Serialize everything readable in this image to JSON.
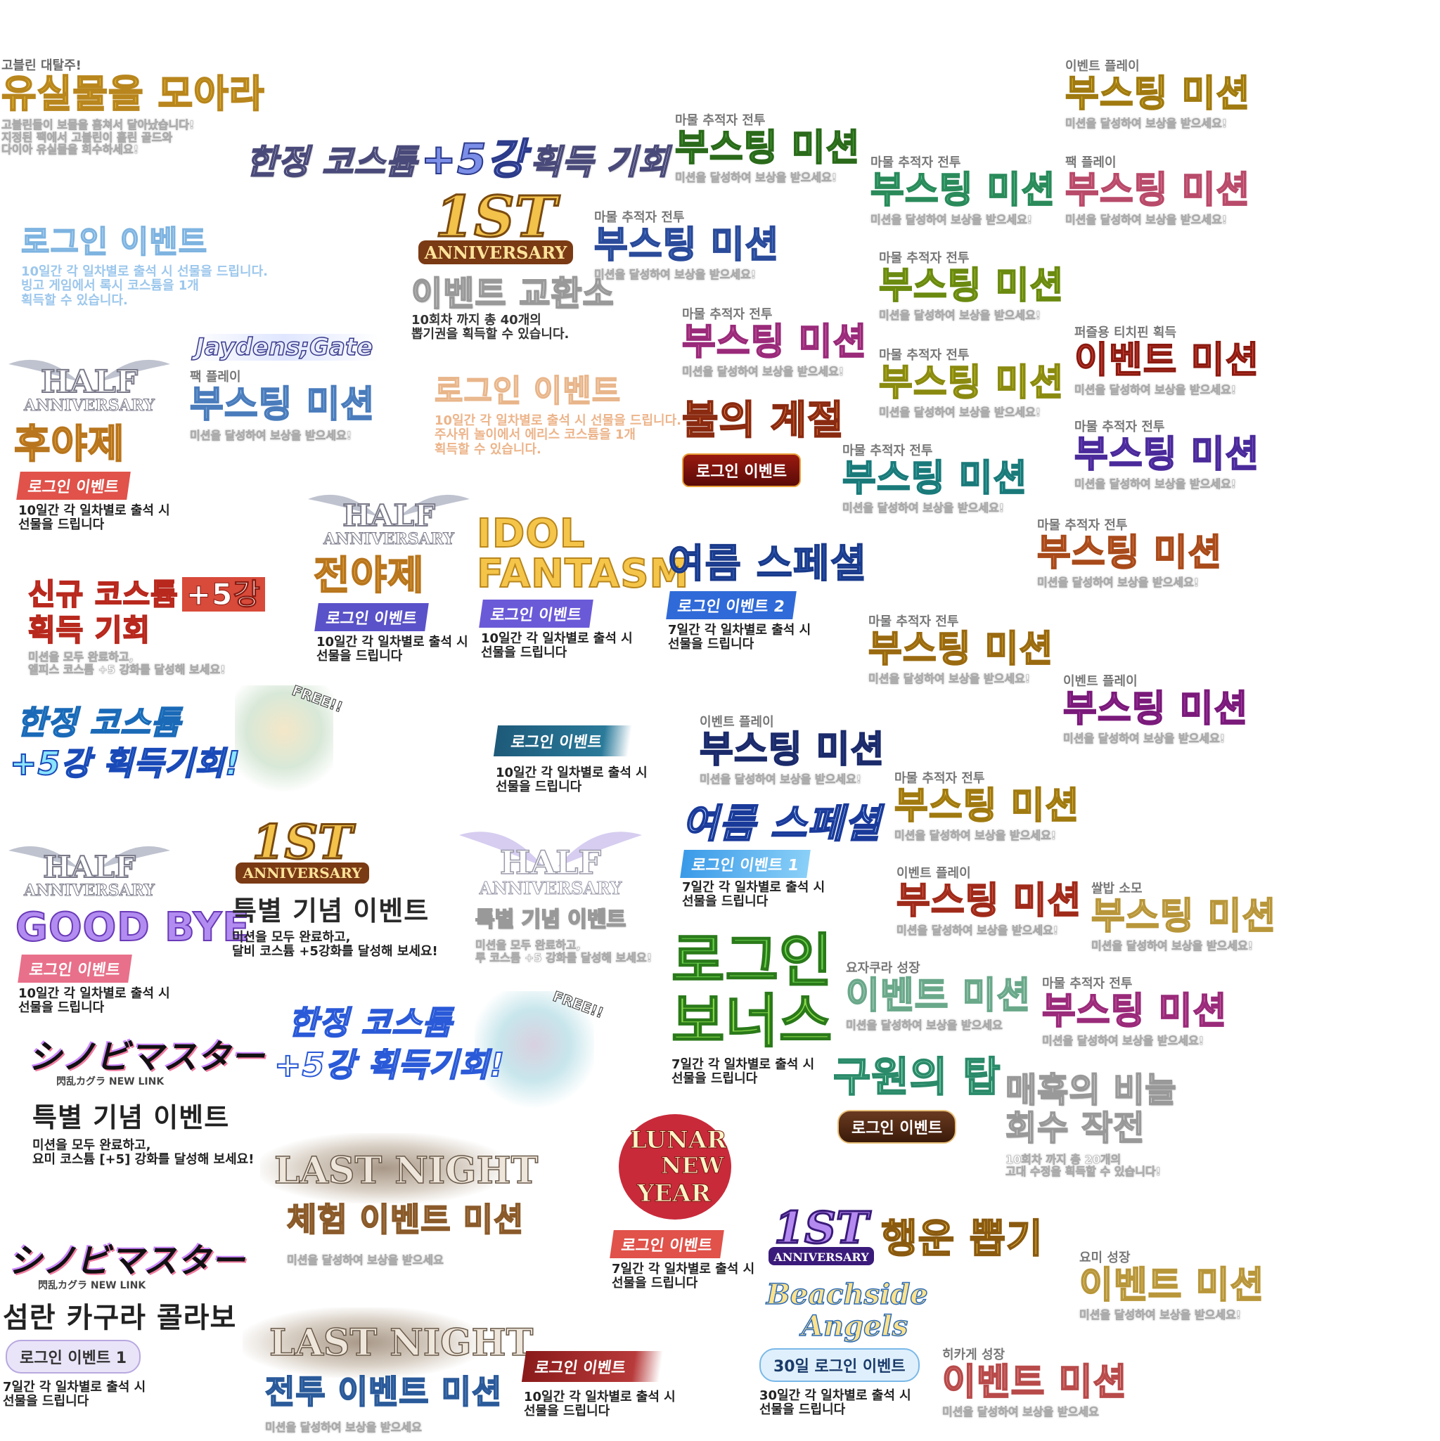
{
  "goblin": {
    "small": "고블린 대탈주!",
    "title": "유실물을 모아라",
    "desc1": "고블린들이 보물을 훔쳐서 달아났습니다!",
    "desc2": "지정된 팩에서 고블린이 흘린 골드와",
    "desc3": "다이아 유실물을 회수하세요!"
  },
  "limited_costume_top": {
    "title": "한정 코스튬",
    "plus": "+5강",
    "rest": "획득 기회"
  },
  "login_blue": {
    "title": "로그인 이벤트",
    "desc1": "10일간 각 일차별로 출석 시 선물을 드립니다.",
    "desc2": "빙고 게임에서 록시 코스튬을 1개",
    "desc3": "획득할 수 있습니다."
  },
  "anniv_exchange": {
    "logo_big": "1ST",
    "logo_small": "ANNIVERSARY",
    "title": "이벤트 교환소",
    "desc1": "10회차 까지 총 40개의",
    "desc2": "뽑기권을 획득할 수 있습니다."
  },
  "jaydens": {
    "logo": "Jaydens;Gate",
    "small": "팩 플레이",
    "title": "부스팅 미션",
    "desc": "미션을 달성하여 보상을 받으세요!"
  },
  "half_after": {
    "logo1": "HALF",
    "logo2": "ANNIVERSARY",
    "title": "후야제",
    "badge": "로그인 이벤트",
    "desc1": "10일간 각 일차별로 출석 시",
    "desc2": "선물을 드립니다"
  },
  "login_peach": {
    "title": "로그인 이벤트",
    "desc1": "10일간 각 일차별로 출석 시 선물을 드립니다.",
    "desc2": "주사위 놀이에서 에리스 코스튬을 1개",
    "desc3": "획득할 수 있습니다."
  },
  "half_eve": {
    "logo1": "HALF",
    "logo2": "ANNIVERSARY",
    "title": "전야제",
    "badge": "로그인 이벤트",
    "desc1": "10일간 각 일차별로 출석 시",
    "desc2": "선물을 드립니다"
  },
  "new_costume": {
    "title1": "신규 코스튬",
    "plus": "+5강",
    "title2": "획득 기회",
    "desc1": "미션을 모두 완료하고,",
    "desc2": "엘피스 코스튬 +5 강화를 달성해 보세요!"
  },
  "idol": {
    "title1": "IDOL",
    "title2": "FANTASM",
    "badge": "로그인 이벤트",
    "desc1": "10일간 각 일차별로 출석 시",
    "desc2": "선물을 드립니다"
  },
  "summer2": {
    "title": "여름 스페셜",
    "badge": "로그인 이벤트 2",
    "desc1": "7일간 각 일차별로 출석 시",
    "desc2": "선물을 드립니다"
  },
  "limited_free1": {
    "line1": "한정 코스튬",
    "line2": "+5강 획득기회!",
    "free": "FREE!!"
  },
  "login_brush_blue": {
    "badge": "로그인 이벤트",
    "desc1": "10일간 각 일차별로 출석 시",
    "desc2": "선물을 드립니다"
  },
  "half_goodbye": {
    "logo1": "HALF",
    "logo2": "ANNIVERSARY",
    "title": "GOOD BYE",
    "badge": "로그인 이벤트",
    "desc1": "10일간 각 일차별로 출석 시",
    "desc2": "선물을 드립니다"
  },
  "anniv_special": {
    "logo_big": "1ST",
    "logo_small": "ANNIVERSARY",
    "title": "특별 기념 이벤트",
    "desc1": "미션을 모두 완료하고,",
    "desc2": "달비 코스튬 +5강화를 달성해 보세요!"
  },
  "half_special": {
    "logo1": "HALF",
    "logo2": "ANNIVERSARY",
    "title": "특별 기념 이벤트",
    "desc1": "미션을 모두 완료하고,",
    "desc2": "루 코스튬 +5 강화를 달성해 보세요!"
  },
  "summer1": {
    "title": "여름 스페셜",
    "badge": "로그인 이벤트 1",
    "desc1": "7일간 각 일차별로 출석 시",
    "desc2": "선물을 드립니다"
  },
  "login_bonus": {
    "title1": "로그인",
    "title2": "보너스",
    "desc1": "7일간 각 일차별로 출석 시",
    "desc2": "선물을 드립니다"
  },
  "fire_season": {
    "title": "불의 계절",
    "badge": "로그인 이벤트"
  },
  "limited_free2": {
    "line1": "한정 코스튬",
    "line2": "+5강 획득기회!",
    "free": "FREE!!"
  },
  "kagura_special": {
    "logo": "シノビマスター",
    "logo_sub": "閃乱カグラ NEW LINK",
    "title": "특별 기념 이벤트",
    "desc1": "미션을 모두 완료하고,",
    "desc2": "요미 코스튬 [+5] 강화를 달성해 보세요!"
  },
  "kagura_collab": {
    "logo": "シノビマスター",
    "logo_sub": "閃乱カグラ NEW LINK",
    "title": "섬란 카구라 콜라보",
    "badge": "로그인 이벤트 1",
    "desc1": "7일간 각 일차별로 출석 시",
    "desc2": "선물을 드립니다"
  },
  "last_night_exp": {
    "logo": "LAST NIGHT",
    "title": "체험 이벤트 미션",
    "desc": "미션을 달성하여 보상을 받으세요"
  },
  "last_night_battle": {
    "logo": "LAST NIGHT",
    "title": "전투 이벤트 미션",
    "desc": "미션을 달성하여 보상을 받으세요"
  },
  "login_brush_red": {
    "badge": "로그인 이벤트",
    "desc1": "10일간 각 일차별로 출석 시",
    "desc2": "선물을 드립니다"
  },
  "lunar": {
    "logo1": "LUNAR",
    "logo2": "NEW",
    "logo3": "YEAR",
    "badge": "로그인 이벤트",
    "desc1": "7일간 각 일차별로 출석 시",
    "desc2": "선물을 드립니다"
  },
  "tower": {
    "title": "구원의 탑",
    "badge": "로그인 이벤트"
  },
  "fish": {
    "title1": "매혹의 비늘",
    "title2": "회수 작전",
    "desc1": "10회차 까지 총 20개의",
    "desc2": "고대 수정을 획득할 수 있습니다!"
  },
  "lucky": {
    "logo_big": "1ST",
    "logo_small": "ANNIVERSARY",
    "title": "행운 뽑기"
  },
  "beach": {
    "logo1": "Beachside",
    "logo2": "Angels",
    "badge": "30일 로그인 이벤트",
    "desc1": "30일간 각 일차별로 출석 시",
    "desc2": "선물을 드립니다"
  },
  "yomi": {
    "small": "요미 성장",
    "title": "이벤트 미션",
    "desc": "미션을 달성하여 보상을 받으세요!"
  },
  "hikage": {
    "small": "히카게 성장",
    "title": "이벤트 미션",
    "desc": "미션을 달성하여 보상을 받으세요"
  },
  "youjyu": {
    "small": "요자쿠라 성장",
    "title": "이벤트 미션",
    "desc": "미션을 달성하여 보상을 받으세요"
  },
  "puzzle": {
    "small": "퍼즐용 티치핀 획득",
    "title": "이벤트 미션",
    "desc": "미션을 달성하여 보상을 받으세요!"
  },
  "ssal": {
    "small": "쌀밥 소모",
    "title": "부스팅 미션",
    "desc": "미션을 달성하여 보상을 받으세요!"
  },
  "boost": {
    "tracker": "마물 추적자 전투",
    "event_play": "이벤트 플레이",
    "pack_play": "팩 플레이",
    "title": "부스팅 미션",
    "desc": "미션을 달성하여 보상을 받으세요!"
  },
  "colors": {
    "gold": "#e8b83a",
    "green": "#56b84a",
    "mint": "#5fcf9a",
    "pink": "#e07ab4",
    "lime": "#b7cf3a",
    "blue": "#5b8fd6",
    "red": "#c94033",
    "purple": "#8a5ed6",
    "orange": "#ea8a5a",
    "magenta": "#c24bc0",
    "navy": "#3b4a9a",
    "salmon": "#e8887a",
    "teal": "#5fc7c0",
    "lavender": "#b28cf0",
    "sky": "#9fd0f0"
  }
}
